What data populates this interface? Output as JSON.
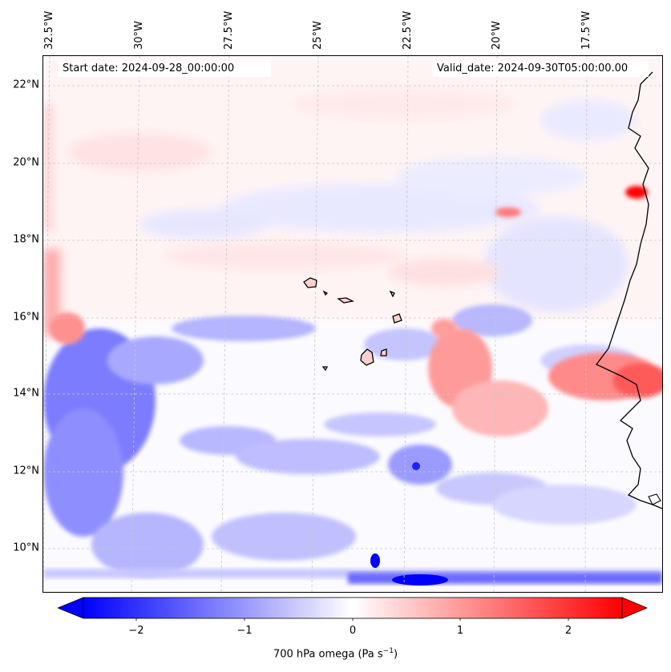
{
  "header": {
    "start_date": "Start date: 2024-09-28_00:00:00",
    "valid_date": "Valid_date: 2024-09-30T05:00:00.00"
  },
  "map": {
    "lon_labels": [
      "32.5°W",
      "30°W",
      "27.5°W",
      "25°W",
      "22.5°W",
      "20°W",
      "17.5°W"
    ],
    "lat_labels": [
      "22°N",
      "20°N",
      "18°N",
      "16°N",
      "14°N",
      "12°N",
      "10°N"
    ],
    "colors": {
      "negative": "#0000ff",
      "zero": "#ffffff",
      "positive": "#ff0000",
      "coastline": "#000000",
      "gridline": "#bbbbbb"
    }
  },
  "colorbar": {
    "ticks": [
      "−2",
      "−1",
      "0",
      "1",
      "2"
    ],
    "label": "700 hPa omega (Pa s",
    "label_sup": "−1",
    "label_end": ")",
    "range": [
      -2.5,
      2.5
    ]
  },
  "chart_data": {
    "type": "heatmap",
    "variable": "700 hPa omega",
    "units": "Pa s−1",
    "vmin": -2.5,
    "vmax": 2.5,
    "colormap": "bwr",
    "extent_lon": [
      "32.5°W",
      "15.5°W"
    ],
    "extent_lat": [
      "9°N",
      "22.8°N"
    ]
  }
}
